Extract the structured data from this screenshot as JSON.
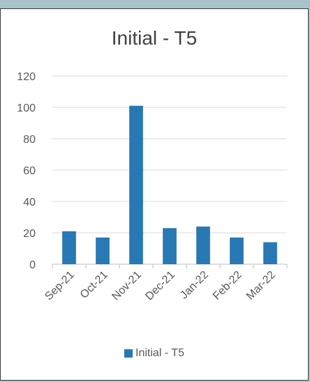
{
  "chart_data": {
    "type": "bar",
    "title": "Initial - T5",
    "categories": [
      "Sep-21",
      "Oct-21",
      "Nov-21",
      "Dec-21",
      "Jan-22",
      "Feb-22",
      "Mar-22"
    ],
    "series": [
      {
        "name": "Initial - T5",
        "values": [
          21,
          17,
          101,
          23,
          24,
          17,
          14
        ]
      }
    ],
    "ylim": [
      0,
      120
    ],
    "yticks": [
      0,
      20,
      40,
      60,
      80,
      100,
      120
    ],
    "xlabel": "",
    "ylabel": "",
    "grid": true,
    "legend": "bottom",
    "bar_color": "#2878b4"
  }
}
